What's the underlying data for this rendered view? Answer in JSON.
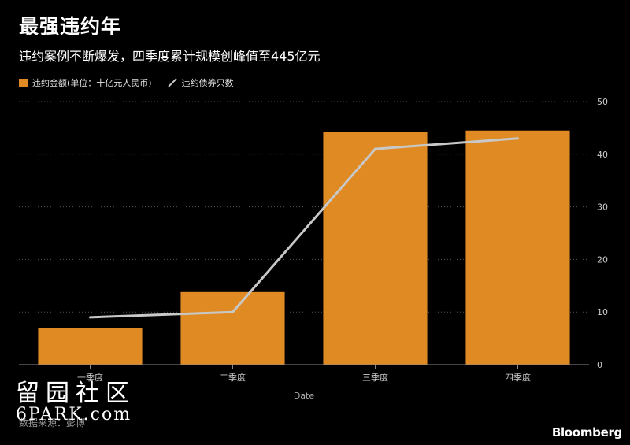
{
  "header": {
    "title": "最强违约年",
    "subtitle": "违约案例不断爆发，四季度累计规模创峰值至445亿元"
  },
  "legend": {
    "bar_label": "违约金额(单位：十亿元人民币)",
    "line_label": "违约债券只数"
  },
  "colors": {
    "bar": "#E08A23",
    "line": "#C8C8C8",
    "background": "#000000",
    "gridline": "#555555"
  },
  "chart_data": {
    "type": "bar",
    "categories": [
      "一季度",
      "二季度",
      "三季度",
      "四季度"
    ],
    "series": [
      {
        "name": "违约金额(单位：十亿元人民币)",
        "type": "bar",
        "values": [
          7.0,
          13.8,
          44.3,
          44.5
        ]
      },
      {
        "name": "违约债券只数",
        "type": "line",
        "values": [
          9,
          10,
          41,
          43
        ]
      }
    ],
    "xlabel": "Date",
    "ylabel": "",
    "ylim": [
      0,
      50
    ],
    "yticks": [
      0,
      10,
      20,
      30,
      40,
      50
    ],
    "y_axis_position": "right",
    "grid": true,
    "legend_position": "top-left"
  },
  "footer": {
    "source": "数据来源：彭博",
    "brand": "Bloomberg"
  },
  "watermark": {
    "line1": "留园社区",
    "line2": "6PARK.com"
  }
}
